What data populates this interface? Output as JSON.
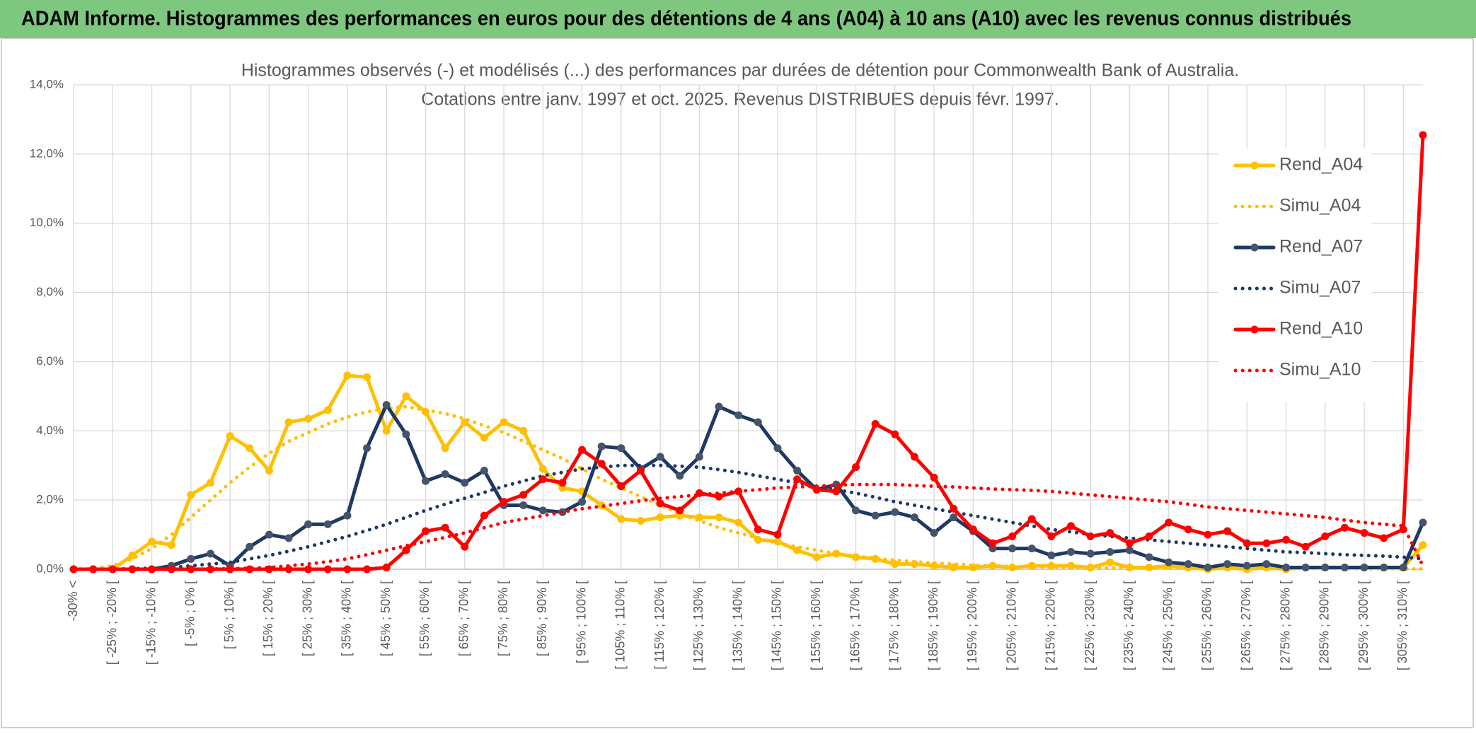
{
  "header": {
    "title": "ADAM Informe. Histogrammes des performances en euros pour des détentions de 4 ans (A04) à 10 ans (A10) avec les revenus connus distribués"
  },
  "chart_data": {
    "type": "line",
    "title": "Histogrammes observés (-) et modélisés (...) des performances par durées de détention pour Commonwealth Bank of Australia.",
    "subtitle": "Cotations entre janv. 1997 et oct. 2025. Revenus DISTRIBUES depuis févr. 1997.",
    "categories": [
      "-30% <",
      null,
      "[ -25% ; -20% [",
      null,
      "[ -15% ; -10% [",
      null,
      "[ -5% ; 0% [",
      null,
      "[ 5% ; 10% [",
      null,
      "[ 15% ; 20% [",
      null,
      "[ 25% ; 30% [",
      null,
      "[ 35% ; 40% [",
      null,
      "[ 45% ; 50% [",
      null,
      "[ 55% ; 60% [",
      null,
      "[ 65% ; 70% [",
      null,
      "[ 75% ; 80% [",
      null,
      "[ 85% ; 90% [",
      null,
      "[ 95% ; 100% [",
      null,
      "[ 105% ; 110% [",
      null,
      "[ 115% ; 120% [",
      null,
      "[ 125% ; 130% [",
      null,
      "[ 135% ; 140% [",
      null,
      "[ 145% ; 150% [",
      null,
      "[ 155% ; 160% [",
      null,
      "[ 165% ; 170% [",
      null,
      "[ 175% ; 180% [",
      null,
      "[ 185% ; 190% [",
      null,
      "[ 195% ; 200% [",
      null,
      "[ 205% ; 210% [",
      null,
      "[ 215% ; 220% [",
      null,
      "[ 225% ; 230% [",
      null,
      "[ 235% ; 240% [",
      null,
      "[ 245% ; 250% [",
      null,
      "[ 255% ; 260% [",
      null,
      "[ 265% ; 270% [",
      null,
      "[ 275% ; 280% [",
      null,
      "[ 285% ; 290% [",
      null,
      "[ 295% ; 300% [",
      null,
      "[ 305% ; 310% [",
      null
    ],
    "series": [
      {
        "name": "Rend_A04",
        "color": "#ffc000",
        "dash": "solid",
        "markers": true,
        "values": [
          0,
          0,
          0,
          0.4,
          0.8,
          0.7,
          2.15,
          2.5,
          3.85,
          3.5,
          2.85,
          4.25,
          4.35,
          4.6,
          5.6,
          5.55,
          4.0,
          5.0,
          4.55,
          3.5,
          4.25,
          3.8,
          4.25,
          4.0,
          2.9,
          2.35,
          2.25,
          1.85,
          1.45,
          1.4,
          1.5,
          1.55,
          1.5,
          1.5,
          1.35,
          0.85,
          0.8,
          0.55,
          0.35,
          0.45,
          0.35,
          0.3,
          0.15,
          0.15,
          0.1,
          0.05,
          0.05,
          0.1,
          0.05,
          0.1,
          0.1,
          0.1,
          0.05,
          0.2,
          0.05,
          0.05,
          0.1,
          0.05,
          0,
          0.05,
          0,
          0.05,
          0,
          0.05,
          0.05,
          0.05,
          0.05,
          0.05,
          0.05,
          0.7
        ]
      },
      {
        "name": "Simu_A04",
        "color": "#ffc000",
        "dash": "dotted",
        "markers": false,
        "values": [
          0,
          0.02,
          0.1,
          0.3,
          0.6,
          1.0,
          1.5,
          2.0,
          2.5,
          2.95,
          3.35,
          3.7,
          3.95,
          4.2,
          4.4,
          4.55,
          4.65,
          4.7,
          4.6,
          4.5,
          4.35,
          4.15,
          3.95,
          3.7,
          3.45,
          3.2,
          2.9,
          2.6,
          2.35,
          2.1,
          1.85,
          1.6,
          1.4,
          1.2,
          1.05,
          0.9,
          0.75,
          0.65,
          0.55,
          0.45,
          0.38,
          0.32,
          0.26,
          0.22,
          0.18,
          0.15,
          0.12,
          0.1,
          0.08,
          0.07,
          0.06,
          0.05,
          0.05,
          0.04,
          0.04,
          0.04,
          0.03,
          0.03,
          0.03,
          0.03,
          0.02,
          0.02,
          0.02,
          0.02,
          0.02,
          0.02,
          0.01,
          0.01,
          0.01,
          0.01
        ]
      },
      {
        "name": "Rend_A07",
        "color": "#1f3864",
        "dash": "solid",
        "markers": true,
        "values": [
          0,
          0,
          0,
          0,
          0,
          0.1,
          0.3,
          0.45,
          0.1,
          0.65,
          1.0,
          0.9,
          1.3,
          1.3,
          1.55,
          3.5,
          4.75,
          3.9,
          2.55,
          2.75,
          2.5,
          2.85,
          1.85,
          1.85,
          1.7,
          1.65,
          1.95,
          3.55,
          3.5,
          2.9,
          3.25,
          2.7,
          3.25,
          4.7,
          4.45,
          4.25,
          3.5,
          2.85,
          2.3,
          2.45,
          1.7,
          1.55,
          1.65,
          1.5,
          1.05,
          1.5,
          1.1,
          0.6,
          0.6,
          0.6,
          0.4,
          0.5,
          0.45,
          0.5,
          0.55,
          0.35,
          0.2,
          0.15,
          0.05,
          0.15,
          0.1,
          0.15,
          0.05,
          0.05,
          0.05,
          0.05,
          0.05,
          0.05,
          0.05,
          1.35
        ]
      },
      {
        "name": "Simu_A07",
        "color": "#1f3864",
        "dash": "dotted",
        "markers": false,
        "values": [
          0,
          0,
          0,
          0.02,
          0.03,
          0.05,
          0.1,
          0.15,
          0.2,
          0.3,
          0.4,
          0.52,
          0.65,
          0.8,
          0.95,
          1.12,
          1.3,
          1.5,
          1.7,
          1.88,
          2.05,
          2.22,
          2.4,
          2.55,
          2.7,
          2.8,
          2.9,
          2.95,
          3.0,
          3.0,
          3.0,
          2.98,
          2.95,
          2.88,
          2.8,
          2.7,
          2.6,
          2.5,
          2.4,
          2.3,
          2.2,
          2.08,
          1.95,
          1.85,
          1.75,
          1.65,
          1.55,
          1.45,
          1.35,
          1.25,
          1.15,
          1.08,
          1.0,
          0.95,
          0.9,
          0.85,
          0.8,
          0.75,
          0.7,
          0.65,
          0.6,
          0.55,
          0.5,
          0.48,
          0.45,
          0.42,
          0.4,
          0.38,
          0.35,
          0.3
        ]
      },
      {
        "name": "Rend_A10",
        "color": "#ff0000",
        "dash": "solid",
        "markers": true,
        "values": [
          0,
          0,
          0,
          0,
          0,
          0,
          0,
          0,
          0,
          0,
          0,
          0,
          0,
          0,
          0,
          0,
          0.05,
          0.55,
          1.1,
          1.2,
          0.65,
          1.55,
          1.95,
          2.15,
          2.6,
          2.5,
          3.45,
          3.05,
          2.4,
          2.85,
          1.9,
          1.7,
          2.2,
          2.1,
          2.25,
          1.15,
          1.0,
          2.6,
          2.3,
          2.25,
          2.95,
          4.2,
          3.9,
          3.25,
          2.65,
          1.75,
          1.15,
          0.75,
          0.95,
          1.45,
          0.95,
          1.25,
          0.95,
          1.05,
          0.75,
          0.95,
          1.35,
          1.15,
          1.0,
          1.1,
          0.75,
          0.75,
          0.85,
          0.65,
          0.95,
          1.2,
          1.05,
          0.9,
          1.15,
          12.55
        ]
      },
      {
        "name": "Simu_A10",
        "color": "#ff0000",
        "dash": "dotted",
        "markers": false,
        "values": [
          0,
          0,
          0,
          0,
          0,
          0,
          0,
          0.01,
          0.02,
          0.03,
          0.05,
          0.1,
          0.15,
          0.22,
          0.3,
          0.42,
          0.55,
          0.68,
          0.8,
          0.92,
          1.05,
          1.2,
          1.35,
          1.45,
          1.55,
          1.65,
          1.75,
          1.82,
          1.9,
          1.98,
          2.05,
          2.1,
          2.15,
          2.2,
          2.25,
          2.3,
          2.35,
          2.38,
          2.4,
          2.43,
          2.45,
          2.45,
          2.45,
          2.42,
          2.4,
          2.38,
          2.35,
          2.32,
          2.3,
          2.28,
          2.25,
          2.2,
          2.15,
          2.1,
          2.05,
          2.0,
          1.95,
          1.88,
          1.8,
          1.75,
          1.7,
          1.65,
          1.6,
          1.55,
          1.5,
          1.42,
          1.35,
          1.3,
          1.25,
          0.1
        ]
      }
    ],
    "ylim": [
      0,
      14
    ],
    "yticks": [
      {
        "value": 0,
        "label": "0,0%"
      },
      {
        "value": 2,
        "label": "2,0%"
      },
      {
        "value": 4,
        "label": "4,0%"
      },
      {
        "value": 6,
        "label": "6,0%"
      },
      {
        "value": 8,
        "label": "8,0%"
      },
      {
        "value": 10,
        "label": "10,0%"
      },
      {
        "value": 12,
        "label": "12,0%"
      },
      {
        "value": 14,
        "label": "14,0%"
      }
    ],
    "grid": true,
    "legend": "right"
  }
}
